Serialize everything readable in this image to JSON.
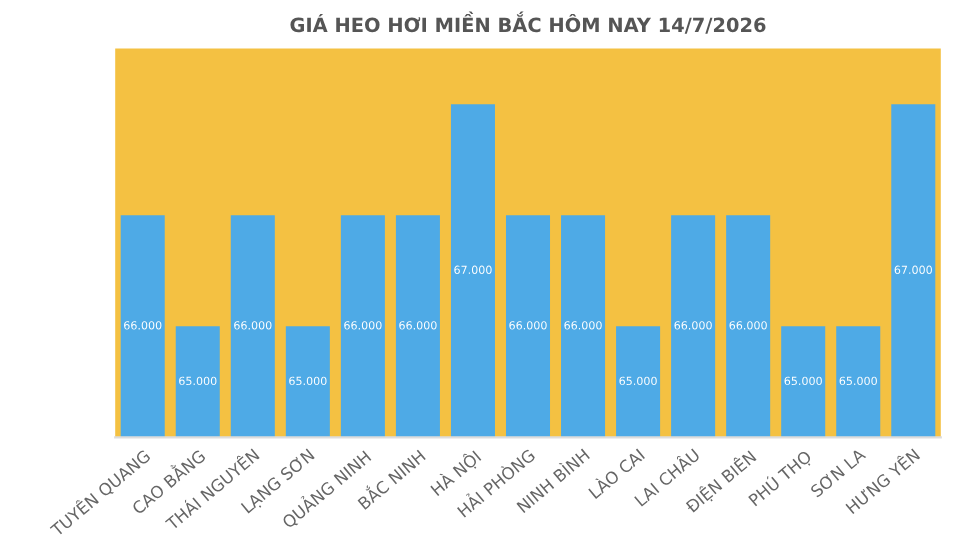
{
  "chart_data": {
    "type": "bar",
    "title": "GIÁ HEO HƠI MIỀN BẮC HÔM NAY 14/7/2026",
    "categories": [
      "TUYÊN QUANG",
      "CAO BẰNG",
      "THÁI NGUYÊN",
      "LẠNG SƠN",
      "QUẢNG NINH",
      "BẮC NINH",
      "HÀ NỘI",
      "HẢI PHÒNG",
      "NINH BÌNH",
      "LÀO CAI",
      "LAI CHÂU",
      "ĐIỆN BIÊN",
      "PHÚ THỌ",
      "SƠN LA",
      "HƯNG YÊN"
    ],
    "values": [
      66000,
      65000,
      66000,
      65000,
      66000,
      66000,
      67000,
      66000,
      66000,
      65000,
      66000,
      66000,
      65000,
      65000,
      67000
    ],
    "value_labels": [
      "66.000",
      "65.000",
      "66.000",
      "65.000",
      "66.000",
      "66.000",
      "67.000",
      "66.000",
      "66.000",
      "65.000",
      "66.000",
      "66.000",
      "65.000",
      "65.000",
      "67.000"
    ],
    "color": "#4eaae6",
    "ylim": [
      64000,
      67500
    ],
    "tick_labels": "x",
    "grid": false,
    "legend": false
  }
}
